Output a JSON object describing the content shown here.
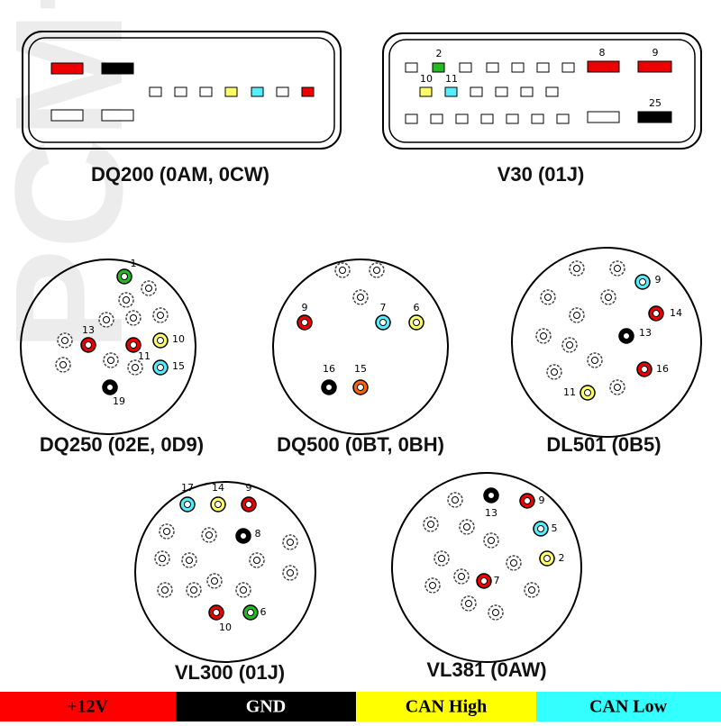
{
  "watermark": "PCMfla",
  "connectors": [
    {
      "name": "DQ200 (0AM, 0CW)"
    },
    {
      "name": "V30 (01J)",
      "pins": [
        "2",
        "8",
        "9",
        "10",
        "11",
        "25"
      ]
    },
    {
      "name": "DQ250 (02E, 0D9)",
      "pins": [
        "1",
        "13",
        "11",
        "10",
        "15",
        "19"
      ]
    },
    {
      "name": "DQ500 (0BT, 0BH)",
      "pins": [
        "9",
        "7",
        "6",
        "16",
        "15"
      ]
    },
    {
      "name": "DL501 (0B5)",
      "pins": [
        "9",
        "14",
        "13",
        "16",
        "11"
      ]
    },
    {
      "name": "VL300 (01J)",
      "pins": [
        "17",
        "14",
        "9",
        "8",
        "10",
        "6"
      ]
    },
    {
      "name": "VL381 (0AW)",
      "pins": [
        "13",
        "9",
        "5",
        "2",
        "7"
      ]
    }
  ],
  "legend": [
    "+12V",
    "GND",
    "CAN High",
    "CAN Low"
  ]
}
